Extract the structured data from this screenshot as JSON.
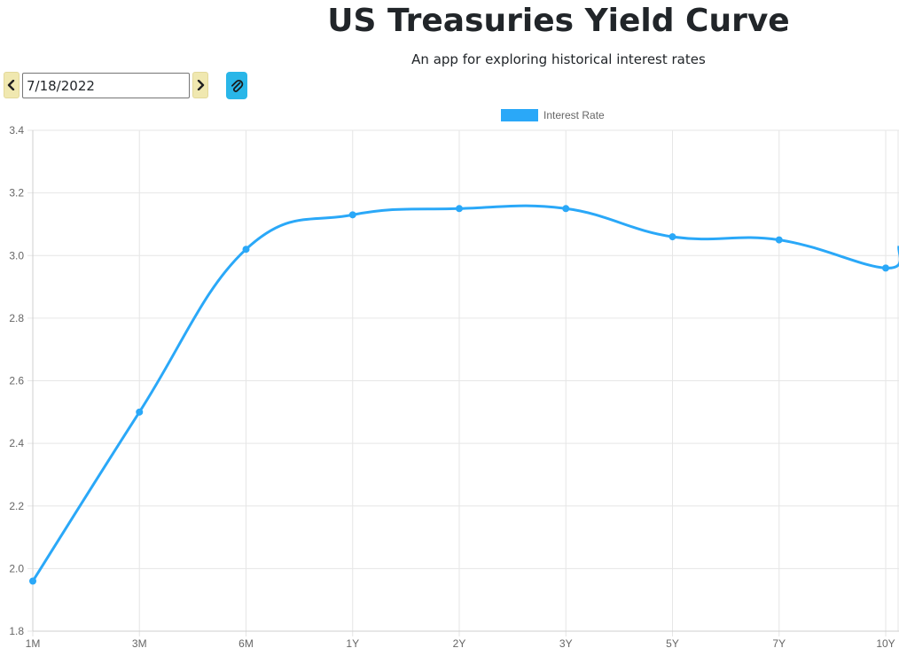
{
  "header": {
    "title": "US Treasuries Yield Curve",
    "subtitle": "An app for exploring historical interest rates"
  },
  "controls": {
    "date_value": "7/18/2022",
    "prev_icon": "chevron-left-icon",
    "next_icon": "chevron-right-icon",
    "attach_icon": "paperclip-icon"
  },
  "colors": {
    "line": "#2aa8f8",
    "nav_button": "#f0e8b0",
    "attach_button": "#29b6e8",
    "grid": "#e6e6e6",
    "text": "#666666"
  },
  "chart_data": {
    "type": "line",
    "categories": [
      "1M",
      "3M",
      "6M",
      "1Y",
      "2Y",
      "3Y",
      "5Y",
      "7Y",
      "10Y"
    ],
    "series": [
      {
        "name": "Interest Rate",
        "values": [
          1.96,
          2.5,
          3.02,
          3.13,
          3.15,
          3.15,
          3.06,
          3.05,
          2.96
        ]
      }
    ],
    "title": "",
    "xlabel": "",
    "ylabel": "",
    "ylim": [
      1.8,
      3.4
    ],
    "yticks": [
      "3.4",
      "3.2",
      "3.0",
      "2.8",
      "2.6",
      "2.4",
      "2.2",
      "2.0",
      "1.8"
    ],
    "grid": true,
    "legend": "top-center",
    "smooth": true
  }
}
